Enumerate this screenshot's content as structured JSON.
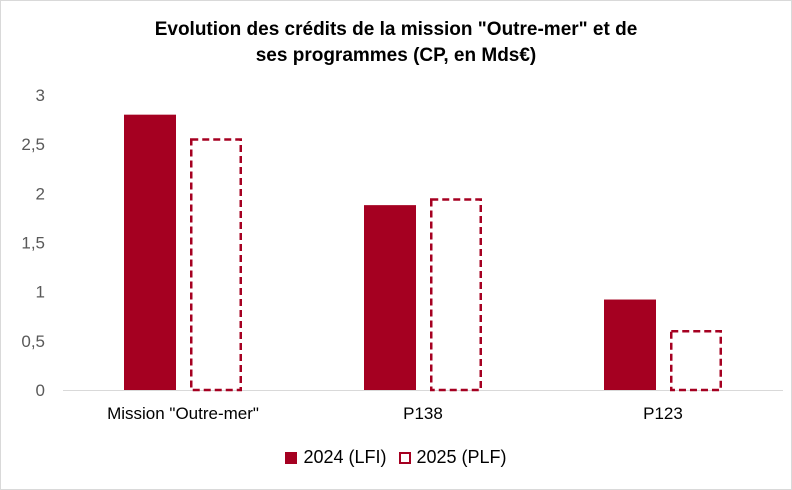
{
  "chart_data": {
    "type": "bar",
    "title_lines": [
      "Evolution des crédits de la mission \"Outre-mer\" et de",
      "ses programmes  (CP, en Mds€)"
    ],
    "categories": [
      "Mission \"Outre-mer\"",
      "P138",
      "P123"
    ],
    "series": [
      {
        "name": "2024 (LFI)",
        "values": [
          2.8,
          1.88,
          0.92
        ],
        "color": "#a50021",
        "style": "solid"
      },
      {
        "name": "2025 (PLF)",
        "values": [
          2.56,
          1.95,
          0.61
        ],
        "color": "#a50021",
        "style": "dashed"
      }
    ],
    "yticks": [
      "0",
      "0,5",
      "1",
      "1,5",
      "2",
      "2,5",
      "3"
    ],
    "ylim": [
      0,
      3
    ],
    "grid": false,
    "legend_position": "bottom"
  }
}
